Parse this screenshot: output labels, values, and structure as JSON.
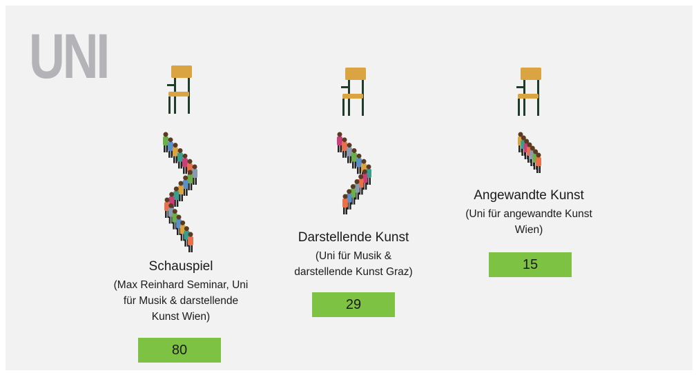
{
  "header": {
    "title": "UNI"
  },
  "columns": [
    {
      "name": "Schauspiel",
      "subtitle": [
        "(Max Reinhard Seminar, Uni",
        "für Musik & darstellende",
        "Kunst Wien)"
      ],
      "value": "80"
    },
    {
      "name": "Darstellende Kunst",
      "subtitle": [
        "(Uni für Musik &",
        "darstellende Kunst Graz)"
      ],
      "value": "29"
    },
    {
      "name": "Angewandte Kunst",
      "subtitle": [
        "(Uni für angewandte Kunst",
        "Wien)"
      ],
      "value": "15"
    }
  ]
}
